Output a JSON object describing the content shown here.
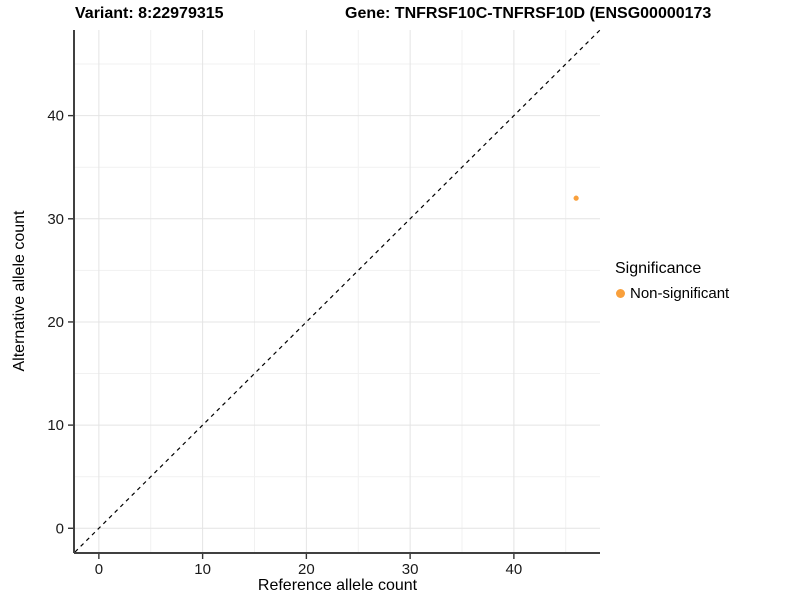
{
  "titles": {
    "variant": "Variant: 8:22979315",
    "gene": "Gene: TNFRSF10C-TNFRSF10D (ENSG00000173"
  },
  "chart_data": {
    "type": "scatter",
    "xlabel": "Reference allele count",
    "ylabel": "Alternative allele count",
    "xlim": [
      -2.3,
      48.3
    ],
    "ylim": [
      -2.3,
      48.3
    ],
    "x_ticks": [
      0,
      10,
      20,
      30,
      40
    ],
    "y_ticks": [
      0,
      10,
      20,
      30,
      40
    ],
    "x_minor_ticks": [
      5,
      15,
      25,
      35,
      45
    ],
    "y_minor_ticks": [
      5,
      15,
      25,
      35,
      45
    ],
    "grid": true,
    "points": [
      {
        "x": 46,
        "y": 32,
        "series": "Non-significant",
        "color": "#F9A03C"
      }
    ],
    "reference_line": {
      "slope": 1,
      "intercept": 0,
      "style": "dashed",
      "color": "#000000"
    },
    "legend": {
      "title": "Significance",
      "position": "right",
      "entries": [
        {
          "label": "Non-significant",
          "color": "#F9A03C"
        }
      ]
    },
    "colors": {
      "major_grid": "#E4E4E4",
      "minor_grid": "#F1F1F1",
      "axis_line": "#404040",
      "tick_mark": "#333333",
      "tick_label": "#1A1A1A",
      "background": "#FFFFFF"
    }
  }
}
